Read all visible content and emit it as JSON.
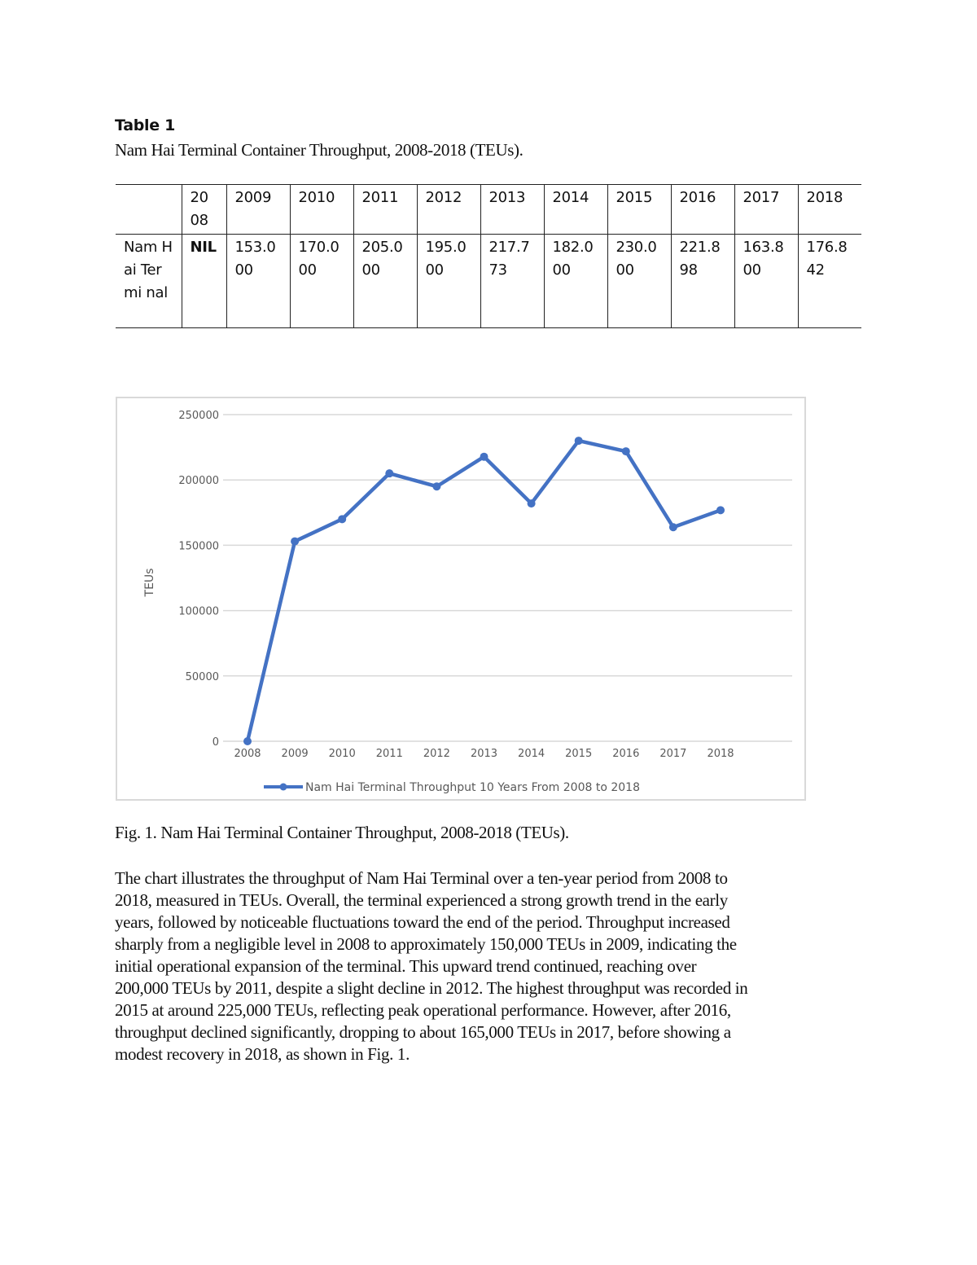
{
  "table": {
    "label": "Table 1",
    "caption": "Nam Hai Terminal Container Throughput, 2008-2018 (TEUs).",
    "header": [
      "",
      "2008",
      "2009",
      "2010",
      "2011",
      "2012",
      "2013",
      "2014",
      "2015",
      "2016",
      "2017",
      "2018"
    ],
    "header_display": [
      "",
      "20 08",
      "2009",
      "2010",
      "2011",
      "2012",
      "2013",
      "2014",
      "2015",
      "2016",
      "2017",
      "2018"
    ],
    "row": {
      "label": "Nam Hai Terminal",
      "label_display": "Nam Hai Termi nal",
      "values": [
        "NIL",
        "153.000",
        "170.000",
        "205.000",
        "195.000",
        "217.773",
        "182.000",
        "230.000",
        "221.898",
        "163.800",
        "176.842"
      ]
    }
  },
  "chart_data": {
    "type": "line",
    "title": "",
    "xlabel": "",
    "ylabel": "TEUs",
    "categories": [
      "2008",
      "2009",
      "2010",
      "2011",
      "2012",
      "2013",
      "2014",
      "2015",
      "2016",
      "2017",
      "2018"
    ],
    "series": [
      {
        "name": "Nam Hai Terminal Throughput 10 Years From 2008 to 2018",
        "color": "#4472c4",
        "values": [
          0,
          153000,
          170000,
          205000,
          195000,
          217773,
          182000,
          230000,
          221898,
          163800,
          176842
        ]
      }
    ],
    "ylim": [
      0,
      250000
    ],
    "yticks": [
      0,
      50000,
      100000,
      150000,
      200000,
      250000
    ],
    "ytick_labels": [
      "0",
      "50000",
      "100000",
      "150000",
      "200000",
      "250000"
    ],
    "grid": true,
    "gridline_color": "#d9d9d9",
    "legend_position": "bottom",
    "legend_label": "Nam Hai Terminal Throughput 10 Years From 2008 to 2018"
  },
  "figure": {
    "caption": "Fig. 1. Nam Hai Terminal Container Throughput, 2008-2018 (TEUs)."
  },
  "body": {
    "lines": [
      "The chart illustrates the throughput of Nam Hai Terminal over a ten-year period from 2008 to",
      "2018, measured in TEUs. Overall, the terminal experienced a strong growth trend in the early",
      "years, followed by noticeable fluctuations toward the end of the period. Throughput increased",
      "sharply from a negligible level in 2008 to approximately 150,000 TEUs in 2009, indicating the",
      "initial operational expansion of the terminal. This upward trend continued, reaching over",
      "200,000 TEUs by 2011, despite a slight decline in 2012. The highest throughput was recorded in",
      "2015 at around 225,000 TEUs, reflecting peak operational performance. However, after 2016,",
      "throughput declined significantly, dropping to about 165,000 TEUs in 2017, before showing a",
      "modest recovery in 2018, as shown in Fig. 1."
    ]
  }
}
